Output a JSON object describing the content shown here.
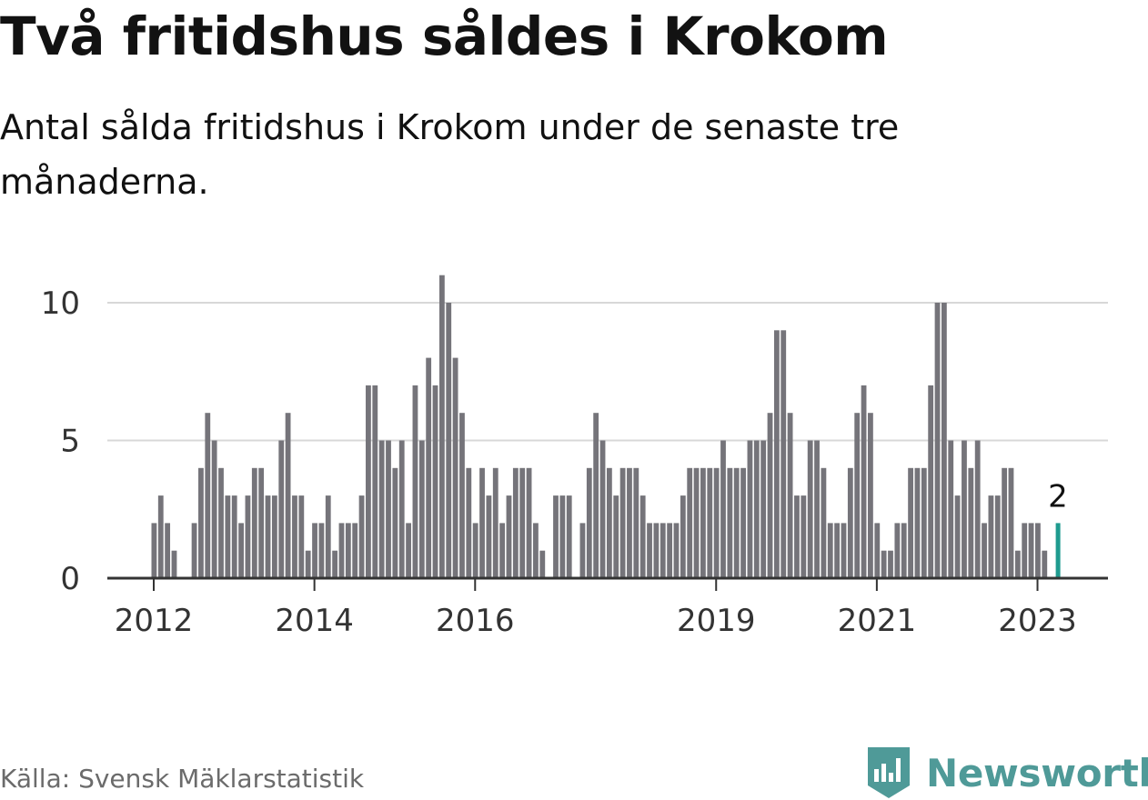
{
  "title": "Två fritidshus såldes i Krokom",
  "subtitle": "Antal sålda fritidshus i Krokom under de senaste tre månaderna.",
  "source": "Källa: Svensk Mäklarstatistik",
  "brand": "Newsworthy",
  "colors": {
    "bar": "#75747a",
    "highlight": "#1f9b8f",
    "grid": "#d8d8d8",
    "axis": "#333333",
    "brand": "#4f9a98"
  },
  "chart_data": {
    "type": "bar",
    "x_start": "2012-01",
    "x_end": "2023-04",
    "values": [
      2,
      3,
      2,
      1,
      0,
      0,
      2,
      4,
      6,
      5,
      4,
      3,
      3,
      2,
      3,
      4,
      4,
      3,
      3,
      5,
      6,
      3,
      3,
      1,
      2,
      2,
      3,
      1,
      2,
      2,
      2,
      3,
      7,
      7,
      5,
      5,
      4,
      5,
      2,
      7,
      5,
      8,
      7,
      11,
      10,
      8,
      6,
      4,
      2,
      4,
      3,
      4,
      2,
      3,
      4,
      4,
      4,
      2,
      1,
      0,
      3,
      3,
      3,
      0,
      2,
      4,
      6,
      5,
      4,
      3,
      4,
      4,
      4,
      3,
      2,
      2,
      2,
      2,
      2,
      3,
      4,
      4,
      4,
      4,
      4,
      5,
      4,
      4,
      4,
      5,
      5,
      5,
      6,
      9,
      9,
      6,
      3,
      3,
      5,
      5,
      4,
      2,
      2,
      2,
      4,
      6,
      7,
      6,
      2,
      1,
      1,
      2,
      2,
      4,
      4,
      4,
      7,
      10,
      10,
      5,
      3,
      5,
      4,
      5,
      2,
      3,
      3,
      4,
      4,
      1,
      2,
      2,
      2,
      1,
      0,
      2
    ],
    "highlight_label": "2",
    "x_ticks": [
      "2012",
      "2014",
      "2016",
      "2019",
      "2021",
      "2023"
    ],
    "y_ticks": [
      "0",
      "5",
      "10"
    ],
    "ylim": [
      0,
      11
    ],
    "grid": true
  }
}
